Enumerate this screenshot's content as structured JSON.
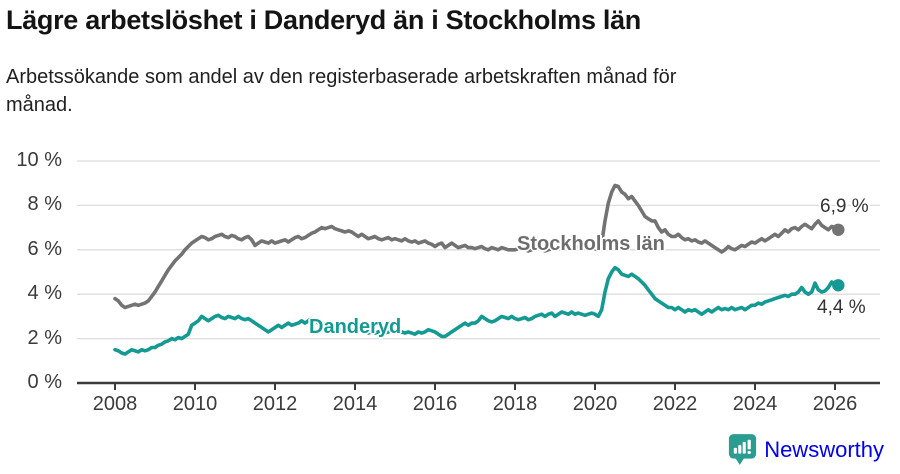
{
  "header": {
    "title": "Lägre arbetslöshet i Danderyd än i Stockholms län",
    "subtitle_lines": [
      "Arbetssökande som andel av den registerbaserade arbetskraften månad för",
      "månad."
    ]
  },
  "footer": {
    "brand": "Newsworthy",
    "brand_color": "#2a9d90",
    "brand_icon": "bar-chart-speech-bubble-icon"
  },
  "colors": {
    "stockholm_line": "#737373",
    "stockholm_label": "#6d6d6d",
    "danderyd_line": "#149a93",
    "gridline": "#dcdcdc",
    "axis": "#3b3b3b",
    "value_text": "#333333"
  },
  "chart_data": {
    "type": "line",
    "title": "Lägre arbetslöshet i Danderyd än i Stockholms län",
    "subtitle": "Arbetssökande som andel av den registerbaserade arbetskraften månad för månad.",
    "unit": "%",
    "frequency": "monthly",
    "x_start": "2008-01",
    "x_end": "2026-02",
    "xlim": [
      2007.05,
      2027.2
    ],
    "ylim": [
      0,
      10
    ],
    "grid": true,
    "legend_position": "inline-labels",
    "y_ticks": [
      {
        "value": 0,
        "label": "0 %"
      },
      {
        "value": 2,
        "label": "2 %"
      },
      {
        "value": 4,
        "label": "4 %"
      },
      {
        "value": 6,
        "label": "6 %"
      },
      {
        "value": 8,
        "label": "8 %"
      },
      {
        "value": 10,
        "label": "10 %"
      }
    ],
    "x_ticks": [
      {
        "value": 2008,
        "label": "2008"
      },
      {
        "value": 2010,
        "label": "2010"
      },
      {
        "value": 2012,
        "label": "2012"
      },
      {
        "value": 2014,
        "label": "2014"
      },
      {
        "value": 2016,
        "label": "2016"
      },
      {
        "value": 2018,
        "label": "2018"
      },
      {
        "value": 2020,
        "label": "2020"
      },
      {
        "value": 2022,
        "label": "2022"
      },
      {
        "value": 2024,
        "label": "2024"
      },
      {
        "value": 2026,
        "label": "2026"
      }
    ],
    "series": [
      {
        "name": "Stockholms län",
        "color": "#737373",
        "end_label": "6,9 %",
        "end_value": 6.9,
        "values": [
          3.8,
          3.7,
          3.5,
          3.4,
          3.45,
          3.5,
          3.55,
          3.5,
          3.55,
          3.6,
          3.7,
          3.9,
          4.1,
          4.35,
          4.6,
          4.85,
          5.1,
          5.3,
          5.5,
          5.65,
          5.8,
          6.0,
          6.15,
          6.3,
          6.4,
          6.5,
          6.6,
          6.55,
          6.45,
          6.5,
          6.6,
          6.65,
          6.7,
          6.6,
          6.55,
          6.65,
          6.6,
          6.5,
          6.45,
          6.55,
          6.6,
          6.45,
          6.2,
          6.3,
          6.4,
          6.35,
          6.3,
          6.4,
          6.3,
          6.35,
          6.4,
          6.45,
          6.35,
          6.45,
          6.55,
          6.6,
          6.5,
          6.55,
          6.65,
          6.75,
          6.8,
          6.9,
          7.0,
          6.95,
          7.0,
          7.05,
          6.95,
          6.9,
          6.85,
          6.8,
          6.85,
          6.8,
          6.7,
          6.6,
          6.7,
          6.6,
          6.5,
          6.55,
          6.6,
          6.5,
          6.45,
          6.5,
          6.55,
          6.45,
          6.5,
          6.45,
          6.4,
          6.5,
          6.4,
          6.35,
          6.4,
          6.3,
          6.35,
          6.4,
          6.3,
          6.25,
          6.15,
          6.25,
          6.3,
          6.1,
          6.2,
          6.3,
          6.2,
          6.1,
          6.15,
          6.2,
          6.1,
          6.1,
          6.05,
          6.1,
          6.15,
          6.05,
          6.0,
          6.1,
          6.05,
          6.0,
          6.1,
          6.05,
          6.0,
          6.0,
          6.0,
          6.05,
          6.1,
          6.0,
          5.95,
          6.0,
          6.05,
          6.1,
          6.0,
          5.95,
          6.0,
          6.05,
          6.0,
          6.05,
          6.1,
          6.05,
          6.1,
          6.15,
          6.2,
          6.1,
          6.05,
          6.1,
          6.05,
          6.1,
          6.05,
          6.0,
          6.3,
          7.3,
          8.1,
          8.6,
          8.9,
          8.85,
          8.6,
          8.5,
          8.3,
          8.4,
          8.2,
          8.0,
          7.75,
          7.5,
          7.4,
          7.3,
          7.3,
          7.0,
          6.8,
          6.9,
          6.7,
          6.6,
          6.6,
          6.7,
          6.55,
          6.45,
          6.5,
          6.4,
          6.45,
          6.35,
          6.3,
          6.4,
          6.3,
          6.2,
          6.1,
          6.0,
          5.9,
          6.0,
          6.15,
          6.05,
          6.0,
          6.1,
          6.2,
          6.15,
          6.25,
          6.35,
          6.3,
          6.4,
          6.5,
          6.4,
          6.5,
          6.6,
          6.7,
          6.6,
          6.75,
          6.9,
          6.8,
          6.95,
          7.0,
          6.9,
          7.05,
          7.15,
          7.05,
          6.95,
          7.15,
          7.3,
          7.1,
          7.0,
          6.9,
          7.05,
          7.0,
          6.9
        ]
      },
      {
        "name": "Danderyd",
        "color": "#149a93",
        "end_label": "4,4 %",
        "end_value": 4.4,
        "values": [
          1.5,
          1.45,
          1.35,
          1.3,
          1.4,
          1.5,
          1.45,
          1.4,
          1.5,
          1.45,
          1.5,
          1.6,
          1.6,
          1.7,
          1.75,
          1.85,
          1.9,
          2.0,
          1.95,
          2.05,
          2.0,
          2.1,
          2.2,
          2.6,
          2.7,
          2.8,
          3.0,
          2.9,
          2.8,
          2.9,
          3.0,
          3.05,
          2.95,
          2.9,
          3.0,
          2.95,
          2.9,
          3.0,
          2.9,
          2.85,
          2.9,
          2.8,
          2.7,
          2.6,
          2.5,
          2.4,
          2.3,
          2.4,
          2.5,
          2.6,
          2.5,
          2.6,
          2.7,
          2.6,
          2.65,
          2.7,
          2.8,
          2.7,
          2.8,
          2.9,
          2.8,
          2.7,
          2.65,
          2.6,
          2.55,
          2.5,
          2.45,
          2.5,
          2.45,
          2.4,
          2.35,
          2.4,
          2.35,
          2.4,
          2.35,
          2.3,
          2.25,
          2.3,
          2.25,
          2.3,
          2.35,
          2.25,
          2.3,
          2.35,
          2.3,
          2.35,
          2.3,
          2.25,
          2.3,
          2.25,
          2.2,
          2.3,
          2.25,
          2.3,
          2.4,
          2.35,
          2.3,
          2.2,
          2.1,
          2.1,
          2.2,
          2.3,
          2.4,
          2.5,
          2.6,
          2.7,
          2.6,
          2.7,
          2.7,
          2.8,
          3.0,
          2.9,
          2.8,
          2.75,
          2.8,
          2.9,
          3.0,
          2.95,
          2.9,
          3.0,
          2.9,
          2.85,
          2.9,
          2.95,
          2.85,
          2.9,
          3.0,
          3.05,
          3.1,
          3.0,
          3.1,
          3.15,
          3.0,
          3.1,
          3.2,
          3.15,
          3.1,
          3.2,
          3.1,
          3.15,
          3.1,
          3.05,
          3.1,
          3.15,
          3.1,
          3.0,
          3.3,
          4.1,
          4.7,
          5.0,
          5.2,
          5.1,
          4.9,
          4.85,
          4.8,
          4.9,
          4.8,
          4.7,
          4.55,
          4.4,
          4.2,
          4.0,
          3.8,
          3.7,
          3.6,
          3.5,
          3.4,
          3.4,
          3.3,
          3.4,
          3.3,
          3.2,
          3.3,
          3.25,
          3.3,
          3.2,
          3.1,
          3.2,
          3.3,
          3.2,
          3.3,
          3.4,
          3.3,
          3.35,
          3.3,
          3.4,
          3.3,
          3.35,
          3.4,
          3.3,
          3.4,
          3.5,
          3.5,
          3.6,
          3.55,
          3.65,
          3.7,
          3.75,
          3.8,
          3.85,
          3.9,
          3.95,
          3.9,
          4.0,
          4.0,
          4.1,
          4.3,
          4.1,
          4.0,
          4.1,
          4.5,
          4.2,
          4.1,
          4.15,
          4.3,
          4.55,
          4.4,
          4.4
        ]
      }
    ]
  }
}
